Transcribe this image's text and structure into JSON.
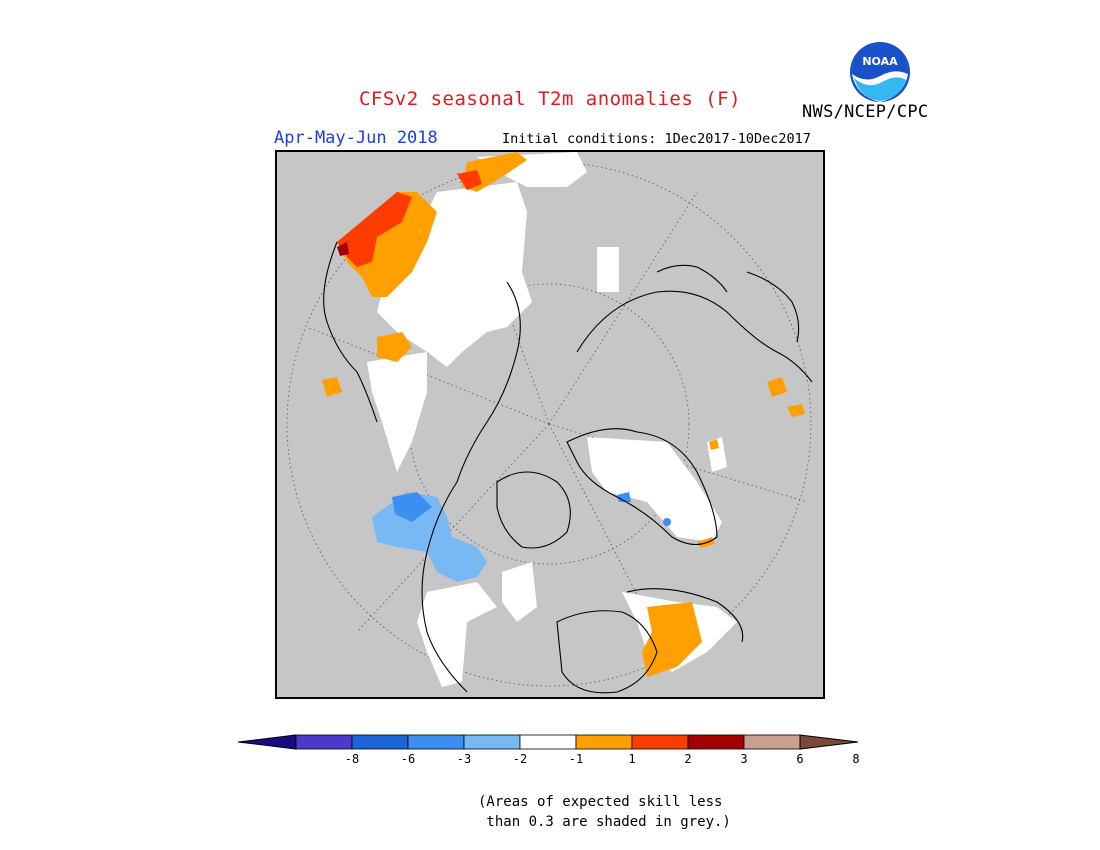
{
  "header": {
    "title": "CFSv2 seasonal T2m anomalies (F)",
    "season": "Apr-May-Jun 2018",
    "initial_conditions": "Initial conditions: 1Dec2017-10Dec2017",
    "agency": "NWS/NCEP/CPC",
    "logo_text": "NOAA"
  },
  "map": {
    "projection": "north-polar-stereographic",
    "missing_color": "#c6c6c6",
    "land_outline_color": "#000000"
  },
  "legend": {
    "ticks": [
      "-8",
      "-6",
      "-3",
      "-2",
      "-1",
      "1",
      "2",
      "3",
      "6",
      "8"
    ],
    "colors": [
      "#1a0b80",
      "#4a3ac8",
      "#1c64d8",
      "#3c8ef0",
      "#78b8f4",
      "#ffffff",
      "#ffa000",
      "#ff3c00",
      "#a50000",
      "#c8a090",
      "#7a4a38"
    ]
  },
  "footnote": {
    "line1": "(Areas of expected skill less",
    "line2": " than 0.3 are shaded in grey.)"
  }
}
